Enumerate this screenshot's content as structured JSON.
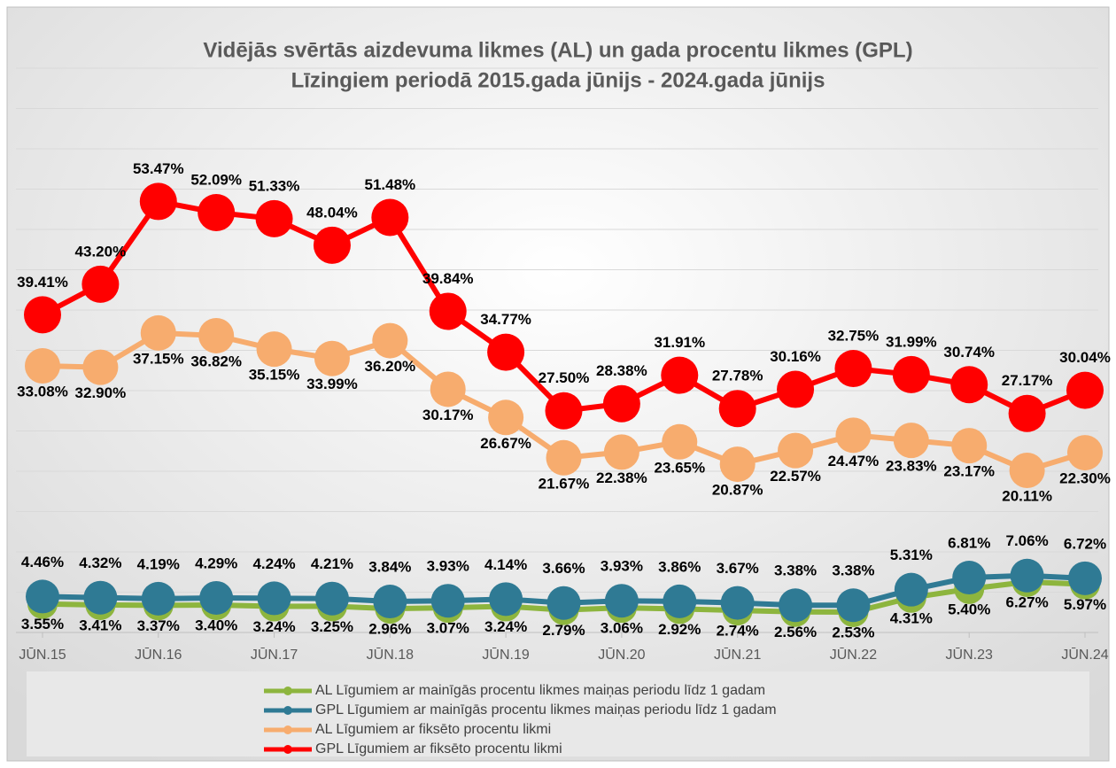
{
  "chart_data": {
    "type": "line",
    "title": [
      "Vidējās svērtās aizdevuma likmes (AL) un gada procentu likmes (GPL)",
      "Līzingiem periodā 2015.gada jūnijs - 2024.gada jūnijs"
    ],
    "categories": [
      "JŪN.15",
      null,
      "JŪN.16",
      null,
      "JŪN.17",
      null,
      "JŪN.18",
      null,
      "JŪN.19",
      null,
      "JŪN.20",
      null,
      "JŪN.21",
      null,
      "JŪN.22",
      null,
      "JŪN.23",
      null,
      "JŪN.24"
    ],
    "ylim": [
      0,
      70
    ],
    "yticks": [
      0,
      5,
      10,
      15,
      20,
      25,
      30,
      35,
      40,
      45,
      50,
      55,
      60,
      65,
      70
    ],
    "grid": true,
    "legend": "bottom",
    "series": [
      {
        "name": "AL Līgumiem ar mainīgās procentu likmes maiņas periodu līdz 1 gadam",
        "color": "#8db53e",
        "values": [
          3.55,
          3.41,
          3.37,
          3.4,
          3.24,
          3.25,
          2.96,
          3.07,
          3.24,
          2.79,
          3.06,
          2.92,
          2.74,
          2.56,
          2.53,
          4.31,
          5.4,
          6.27,
          5.97
        ],
        "value_labels": [
          "3.55%",
          "3.41%",
          "3.37%",
          "3.40%",
          "3.24%",
          "3.25%",
          "2.96%",
          "3.07%",
          "3.24%",
          "2.79%",
          "3.06%",
          "2.92%",
          "2.74%",
          "2.56%",
          "2.53%",
          "4.31%",
          "5.40%",
          "6.27%",
          "5.97%"
        ]
      },
      {
        "name": "GPL Līgumiem ar mainīgās procentu likmes maiņas periodu līdz 1 gadam",
        "color": "#2f7a94",
        "values": [
          4.46,
          4.32,
          4.19,
          4.29,
          4.24,
          4.21,
          3.84,
          3.93,
          4.14,
          3.66,
          3.93,
          3.86,
          3.67,
          3.38,
          3.38,
          5.31,
          6.81,
          7.06,
          6.72
        ],
        "value_labels": [
          "4.46%",
          "4.32%",
          "4.19%",
          "4.29%",
          "4.24%",
          "4.21%",
          "3.84%",
          "3.93%",
          "4.14%",
          "3.66%",
          "3.93%",
          "3.86%",
          "3.67%",
          "3.38%",
          "3.38%",
          "5.31%",
          "6.81%",
          "7.06%",
          "6.72%"
        ]
      },
      {
        "name": "AL Līgumiem ar fiksēto procentu likmi",
        "color": "#f7ac6e",
        "values": [
          33.08,
          32.9,
          37.15,
          36.82,
          35.15,
          33.99,
          36.2,
          30.17,
          26.67,
          21.67,
          22.38,
          23.65,
          20.87,
          22.57,
          24.47,
          23.83,
          23.17,
          20.11,
          22.3
        ],
        "value_labels": [
          "33.08%",
          "32.90%",
          "37.15%",
          "36.82%",
          "35.15%",
          "33.99%",
          "36.20%",
          "30.17%",
          "26.67%",
          "21.67%",
          "22.38%",
          "23.65%",
          "20.87%",
          "22.57%",
          "24.47%",
          "23.83%",
          "23.17%",
          "20.11%",
          "22.30%"
        ]
      },
      {
        "name": "GPL Līgumiem ar fiksēto procentu likmi",
        "color": "#ff0000",
        "values": [
          39.41,
          43.2,
          53.47,
          52.09,
          51.33,
          48.04,
          51.48,
          39.84,
          34.77,
          27.5,
          28.38,
          31.91,
          27.78,
          30.16,
          32.75,
          31.99,
          30.74,
          27.17,
          30.04
        ],
        "value_labels": [
          "39.41%",
          "43.20%",
          "53.47%",
          "52.09%",
          "51.33%",
          "48.04%",
          "51.48%",
          "39.84%",
          "34.77%",
          "27.50%",
          "28.38%",
          "31.91%",
          "27.78%",
          "30.16%",
          "32.75%",
          "31.99%",
          "30.74%",
          "27.17%",
          "30.04%"
        ]
      }
    ]
  }
}
